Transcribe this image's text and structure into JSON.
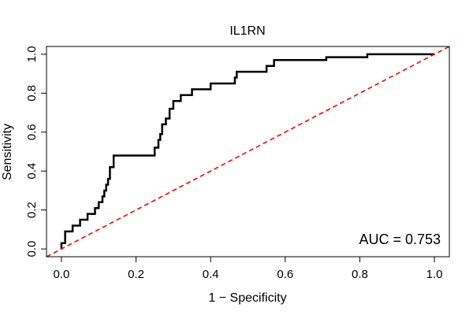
{
  "chart_data": {
    "type": "line",
    "title": "IL1RN",
    "xlabel": "1 − Specificity",
    "ylabel": "Sensitivity",
    "xlim": [
      -0.04,
      1.04
    ],
    "ylim": [
      -0.04,
      1.04
    ],
    "x_ticks": [
      0.0,
      0.2,
      0.4,
      0.6,
      0.8,
      1.0
    ],
    "x_tick_labels": [
      "0.0",
      "0.2",
      "0.4",
      "0.6",
      "0.8",
      "1.0"
    ],
    "y_ticks": [
      0.0,
      0.2,
      0.4,
      0.6,
      0.8,
      1.0
    ],
    "y_tick_labels": [
      "0.0",
      "0.2",
      "0.4",
      "0.6",
      "0.8",
      "1.0"
    ],
    "grid": false,
    "annotation": "AUC = 0.753",
    "series": [
      {
        "style": "solid",
        "color": "#000000",
        "x": [
          0.0,
          0.0,
          0.01,
          0.01,
          0.03,
          0.03,
          0.05,
          0.05,
          0.07,
          0.07,
          0.09,
          0.09,
          0.1,
          0.1,
          0.11,
          0.11,
          0.115,
          0.115,
          0.12,
          0.12,
          0.125,
          0.125,
          0.13,
          0.13,
          0.14,
          0.14,
          0.25,
          0.25,
          0.26,
          0.26,
          0.265,
          0.265,
          0.27,
          0.27,
          0.28,
          0.28,
          0.29,
          0.29,
          0.3,
          0.3,
          0.32,
          0.32,
          0.35,
          0.35,
          0.4,
          0.4,
          0.465,
          0.465,
          0.47,
          0.47,
          0.55,
          0.55,
          0.57,
          0.57,
          0.71,
          0.71,
          0.82,
          0.82,
          1.0
        ],
        "y": [
          0.0,
          0.03,
          0.03,
          0.09,
          0.09,
          0.12,
          0.12,
          0.15,
          0.15,
          0.18,
          0.18,
          0.21,
          0.21,
          0.24,
          0.24,
          0.27,
          0.27,
          0.3,
          0.3,
          0.33,
          0.33,
          0.36,
          0.36,
          0.42,
          0.42,
          0.48,
          0.48,
          0.52,
          0.52,
          0.56,
          0.56,
          0.59,
          0.59,
          0.64,
          0.64,
          0.67,
          0.67,
          0.72,
          0.72,
          0.76,
          0.76,
          0.79,
          0.79,
          0.82,
          0.82,
          0.85,
          0.85,
          0.88,
          0.88,
          0.91,
          0.91,
          0.94,
          0.94,
          0.97,
          0.97,
          0.985,
          0.985,
          1.0,
          1.0
        ]
      },
      {
        "style": "dashed",
        "color": "#ff0000",
        "x": [
          -0.04,
          1.04
        ],
        "y": [
          -0.04,
          1.04
        ]
      }
    ]
  }
}
